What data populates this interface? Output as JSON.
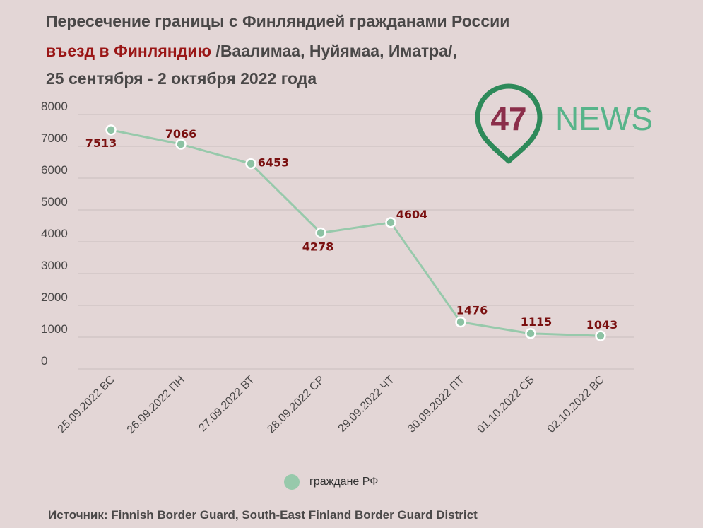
{
  "title": {
    "line1": "Пересечение границы с Финляндией гражданами России",
    "line2_accent": "въезд в Финляндию",
    "line2_rest": " /Ваалимаа, Нуйямаа, Иматра/,",
    "line3": "25 сентября - 2 октября 2022 года"
  },
  "logo": {
    "number": "47",
    "word": "NEWS",
    "colors": {
      "ring": "#2e8a5a",
      "number": "#8b2e4a",
      "word": "#57b48a"
    }
  },
  "legend": {
    "label": "граждане РФ"
  },
  "source": "Источник: Finnish Border Guard, South-East Finland Border Guard District",
  "colors": {
    "line": "#97c9ab",
    "marker": "#8cc2a3",
    "data_label": "#7a1010",
    "grid": "#c9bfbf",
    "axis_text": "#4a4848"
  },
  "chart_data": {
    "type": "line",
    "categories": [
      "25.09.2022 ВС",
      "26.09.2022 ПН",
      "27.09.2022 ВТ",
      "28.09.2022 СР",
      "29.09.2022 ЧТ",
      "30.09.2022 ПТ",
      "01.10.2022 СБ",
      "02.10.2022 ВС"
    ],
    "series": [
      {
        "name": "граждане РФ",
        "values": [
          7513,
          7066,
          6453,
          4278,
          4604,
          1476,
          1115,
          1043
        ]
      }
    ],
    "yticks": [
      0,
      1000,
      2000,
      3000,
      4000,
      5000,
      6000,
      7000,
      8000
    ],
    "ylim": [
      0,
      8000
    ],
    "grid": true,
    "legend_position": "bottom"
  }
}
